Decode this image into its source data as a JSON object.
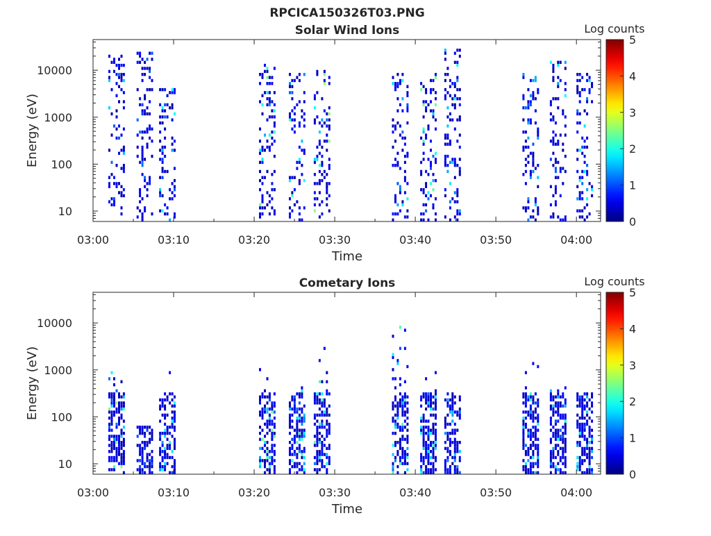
{
  "figure": {
    "title": "RPCICA150326T03.PNG"
  },
  "chart_data": [
    {
      "type": "heatmap",
      "title": "Solar Wind Ions",
      "xlabel": "Time",
      "ylabel": "Energy (eV)",
      "yscale": "log",
      "ylim": [
        6,
        45000
      ],
      "xlim": [
        "03:00",
        "04:03"
      ],
      "x_ticks": [
        "03:00",
        "03:10",
        "03:20",
        "03:30",
        "03:40",
        "03:50",
        "04:00"
      ],
      "y_ticks": [
        10,
        100,
        1000,
        10000
      ],
      "y_tick_labels": [
        "10",
        "100",
        "1000",
        "10000"
      ],
      "colorbar": {
        "label": "Log counts",
        "range": [
          0,
          5
        ],
        "ticks": [
          "0",
          "1",
          "2",
          "3",
          "4",
          "5"
        ],
        "colormap": "jet"
      },
      "grid": false,
      "bursts": [
        {
          "t": 2.8,
          "emin": 6,
          "emax": 20000,
          "peak": 1.9
        },
        {
          "t": 6.3,
          "emin": 6,
          "emax": 25000,
          "peak": 1.2
        },
        {
          "t": 9.1,
          "emin": 6,
          "emax": 6000,
          "peak": 2.0
        },
        {
          "t": 21.5,
          "emin": 6,
          "emax": 14000,
          "peak": 2.6
        },
        {
          "t": 25.2,
          "emin": 6,
          "emax": 8000,
          "peak": 2.2
        },
        {
          "t": 28.3,
          "emin": 6,
          "emax": 9000,
          "peak": 2.6
        },
        {
          "t": 38.0,
          "emin": 6,
          "emax": 8000,
          "peak": 2.0
        },
        {
          "t": 41.5,
          "emin": 6,
          "emax": 8000,
          "peak": 2.4
        },
        {
          "t": 44.5,
          "emin": 6,
          "emax": 30000,
          "peak": 2.0
        },
        {
          "t": 54.2,
          "emin": 6,
          "emax": 8000,
          "peak": 1.6
        },
        {
          "t": 57.6,
          "emin": 6,
          "emax": 15000,
          "peak": 1.9
        },
        {
          "t": 60.9,
          "emin": 6,
          "emax": 10000,
          "peak": 1.9
        }
      ]
    },
    {
      "type": "heatmap",
      "title": "Cometary Ions",
      "xlabel": "Time",
      "ylabel": "Energy (eV)",
      "yscale": "log",
      "ylim": [
        6,
        45000
      ],
      "xlim": [
        "03:00",
        "04:03"
      ],
      "x_ticks": [
        "03:00",
        "03:10",
        "03:20",
        "03:30",
        "03:40",
        "03:50",
        "04:00"
      ],
      "y_ticks": [
        10,
        100,
        1000,
        10000
      ],
      "y_tick_labels": [
        "10",
        "100",
        "1000",
        "10000"
      ],
      "colorbar": {
        "label": "Log counts",
        "range": [
          0,
          5
        ],
        "ticks": [
          "0",
          "1",
          "2",
          "3",
          "4",
          "5"
        ],
        "colormap": "jet"
      },
      "grid": false,
      "bursts": [
        {
          "t": 2.8,
          "emin": 6,
          "emax": 900,
          "peak": 2.8
        },
        {
          "t": 6.3,
          "emin": 6,
          "emax": 60,
          "peak": 1.0
        },
        {
          "t": 9.1,
          "emin": 6,
          "emax": 1100,
          "peak": 2.1
        },
        {
          "t": 21.5,
          "emin": 6,
          "emax": 1800,
          "peak": 2.6
        },
        {
          "t": 25.2,
          "emin": 6,
          "emax": 400,
          "peak": 2.2
        },
        {
          "t": 28.3,
          "emin": 6,
          "emax": 3500,
          "peak": 2.4
        },
        {
          "t": 38.0,
          "emin": 6,
          "emax": 8500,
          "peak": 2.3
        },
        {
          "t": 41.5,
          "emin": 6,
          "emax": 900,
          "peak": 2.0
        },
        {
          "t": 44.5,
          "emin": 6,
          "emax": 300,
          "peak": 1.6
        },
        {
          "t": 54.2,
          "emin": 6,
          "emax": 1500,
          "peak": 2.2
        },
        {
          "t": 57.6,
          "emin": 6,
          "emax": 400,
          "peak": 2.0
        },
        {
          "t": 60.9,
          "emin": 6,
          "emax": 300,
          "peak": 2.0
        }
      ]
    }
  ]
}
